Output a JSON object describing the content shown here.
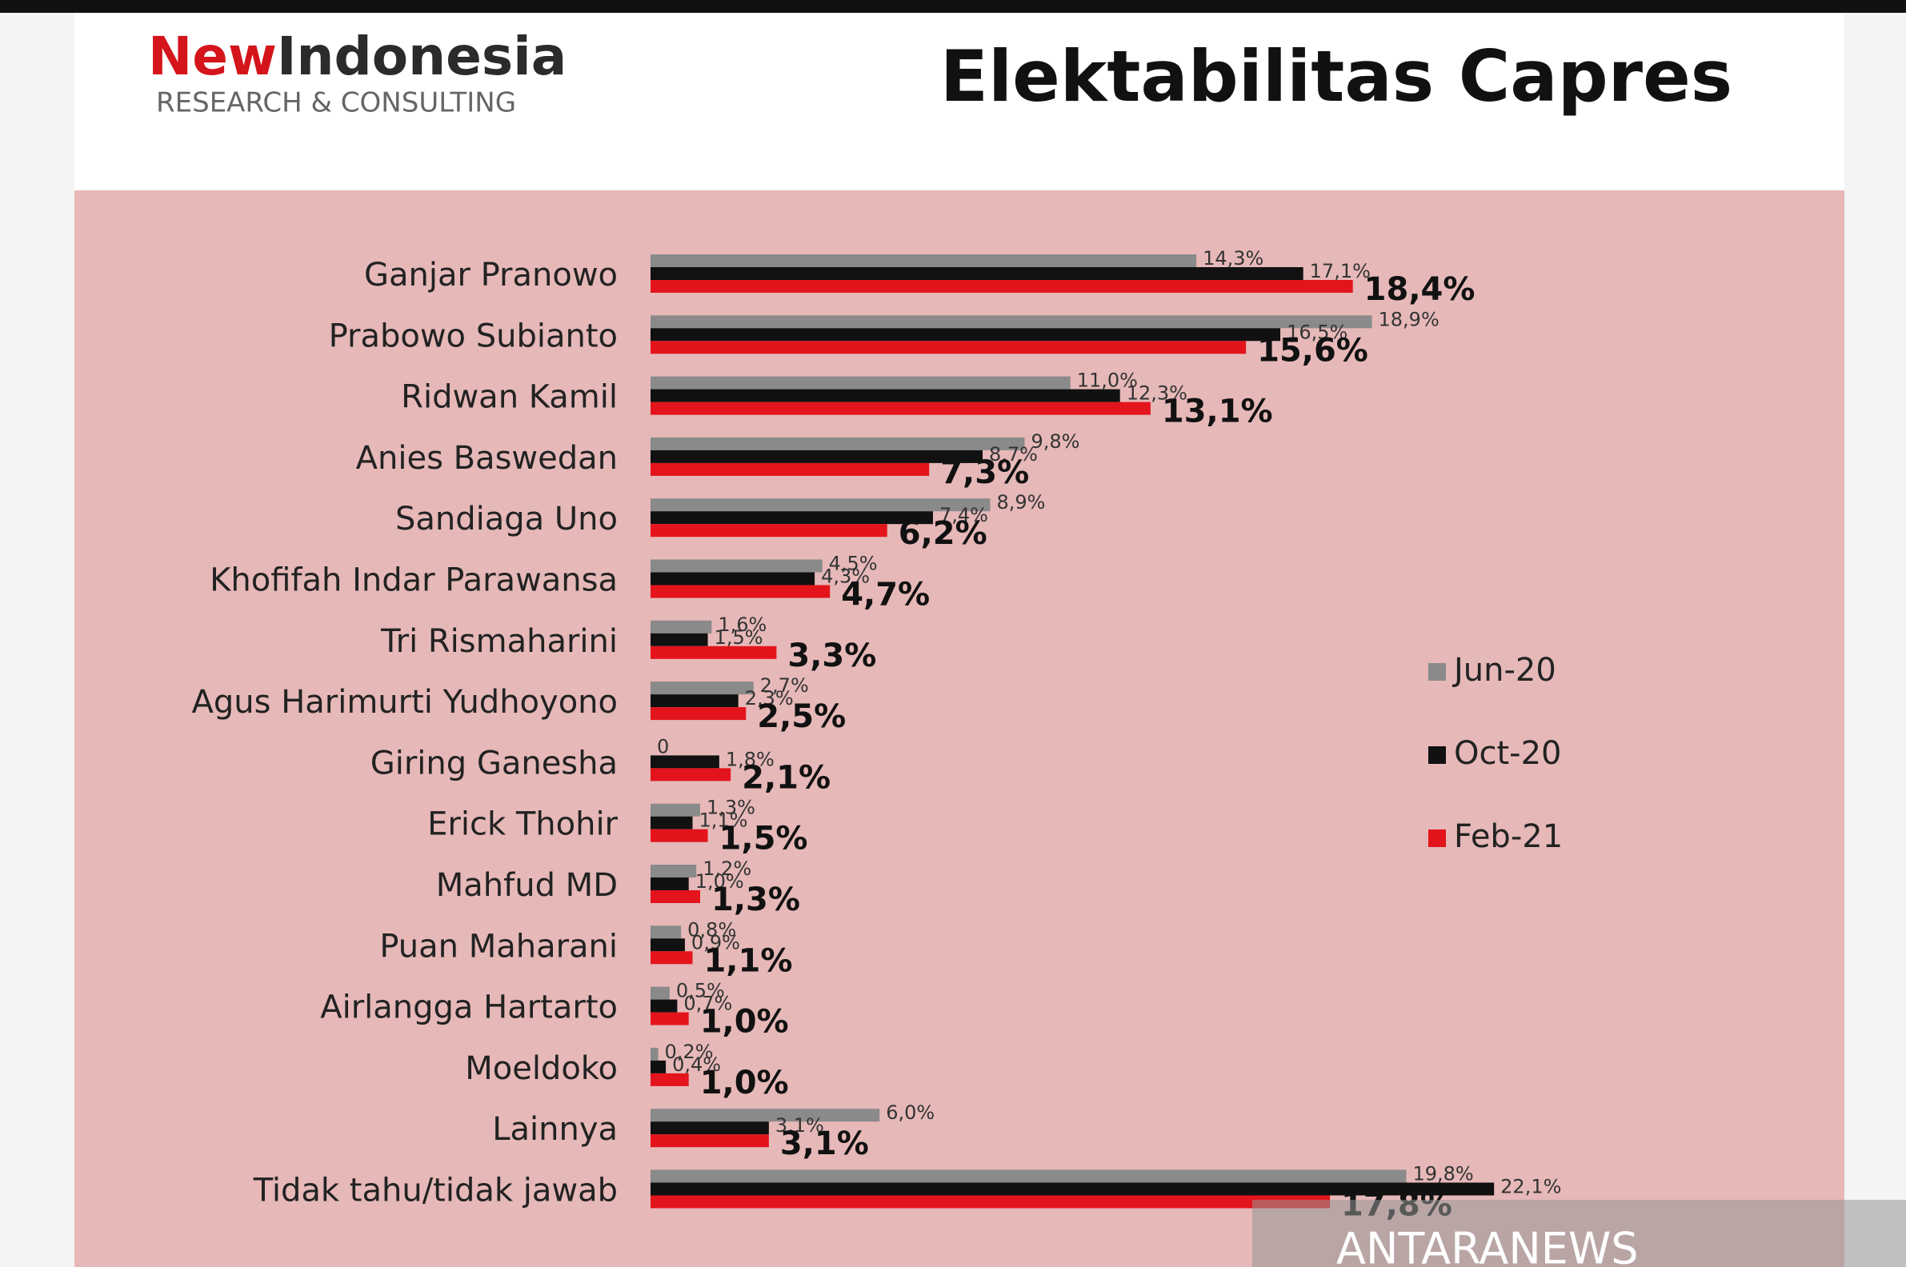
{
  "header": {
    "logo_part1": "New",
    "logo_part2": "Indonesia",
    "logo_subtitle": "RESEARCH & CONSULTING"
  },
  "watermark": "ANTARANEWS",
  "chart_data": {
    "type": "bar",
    "orientation": "horizontal",
    "title": "Elektabilitas Capres",
    "categories": [
      "Ganjar Pranowo",
      "Prabowo Subianto",
      "Ridwan Kamil",
      "Anies Baswedan",
      "Sandiaga Uno",
      "Khofifah Indar Parawansa",
      "Tri Rismaharini",
      "Agus Harimurti Yudhoyono",
      "Giring Ganesha",
      "Erick Thohir",
      "Mahfud MD",
      "Puan Maharani",
      "Airlangga Hartarto",
      "Moeldoko",
      "Lainnya",
      "Tidak tahu/tidak jawab"
    ],
    "series": [
      {
        "name": "Jun-20",
        "color": "#8a8a8a",
        "values": [
          14.3,
          18.9,
          11.0,
          9.8,
          8.9,
          4.5,
          1.6,
          2.7,
          0,
          1.3,
          1.2,
          0.8,
          0.5,
          0.2,
          6.0,
          19.8
        ],
        "value_labels": [
          "14,3%",
          "18,9%",
          "11,0%",
          "9,8%",
          "8,9%",
          "4,5%",
          "1,6%",
          "2,7%",
          "0",
          "1,3%",
          "1,2%",
          "0,8%",
          "0,5%",
          "0,2%",
          "6,0%",
          "19,8%"
        ]
      },
      {
        "name": "Oct-20",
        "color": "#111111",
        "values": [
          17.1,
          16.5,
          12.3,
          8.7,
          7.4,
          4.3,
          1.5,
          2.3,
          1.8,
          1.1,
          1.0,
          0.9,
          0.7,
          0.4,
          3.1,
          22.1
        ],
        "value_labels": [
          "17,1%",
          "16,5%",
          "12,3%",
          "8,7%",
          "7,4%",
          "4,3%",
          "1,5%",
          "2,3%",
          "1,8%",
          "1,1%",
          "1,0%",
          "0,9%",
          "0,7%",
          "0,4%",
          "3,1%",
          "22,1%"
        ]
      },
      {
        "name": "Feb-21",
        "color": "#e3141c",
        "values": [
          18.4,
          15.6,
          13.1,
          7.3,
          6.2,
          4.7,
          3.3,
          2.5,
          2.1,
          1.5,
          1.3,
          1.1,
          1.0,
          1.0,
          3.1,
          17.8
        ],
        "value_labels": [
          "18,4%",
          "15,6%",
          "13,1%",
          "7,3%",
          "6,2%",
          "4,7%",
          "3,3%",
          "2,5%",
          "2,1%",
          "1,5%",
          "1,3%",
          "1,1%",
          "1,0%",
          "1,0%",
          "3,1%",
          "17,8%"
        ]
      }
    ]
  }
}
